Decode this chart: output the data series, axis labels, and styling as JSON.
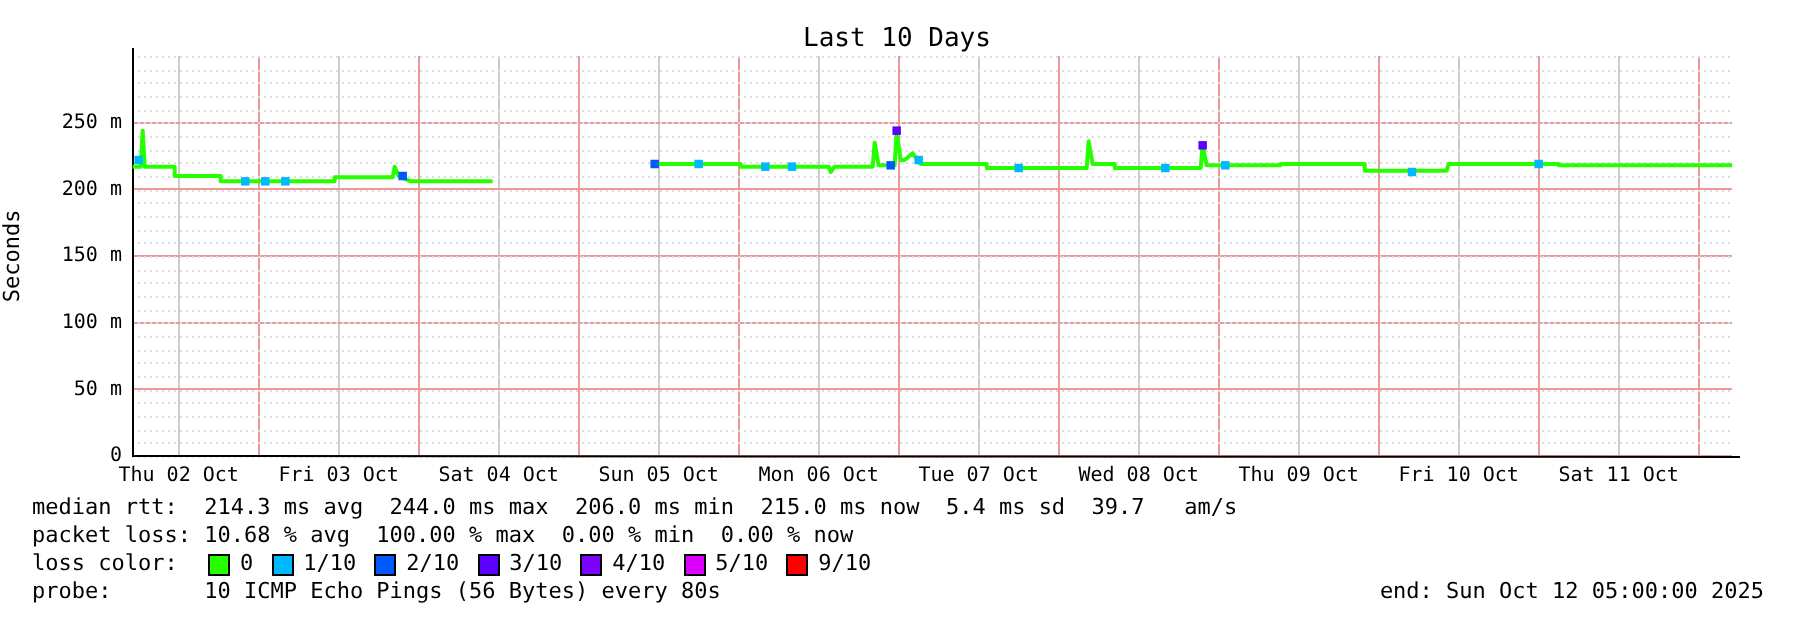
{
  "chart_data": {
    "type": "line",
    "title": "Last 10 Days",
    "ylabel": "Seconds",
    "legend_title": "loss color:",
    "legend": "bottom",
    "grid": true,
    "xlim": [
      "2025-10-02T05:00",
      "2025-10-12T05:00"
    ],
    "xticks": [
      {
        "value": "2025-10-02T12:00",
        "label": "Thu 02 Oct"
      },
      {
        "value": "2025-10-03",
        "label": null
      },
      {
        "value": "2025-10-03T12:00",
        "label": "Fri 03 Oct"
      },
      {
        "value": "2025-10-04",
        "label": null
      },
      {
        "value": "2025-10-04T12:00",
        "label": "Sat 04 Oct"
      },
      {
        "value": "2025-10-05",
        "label": null
      },
      {
        "value": "2025-10-05T12:00",
        "label": "Sun 05 Oct"
      },
      {
        "value": "2025-10-06",
        "label": null
      },
      {
        "value": "2025-10-06T12:00",
        "label": "Mon 06 Oct"
      },
      {
        "value": "2025-10-07",
        "label": null
      },
      {
        "value": "2025-10-07T12:00",
        "label": "Tue 07 Oct"
      },
      {
        "value": "2025-10-08",
        "label": null
      },
      {
        "value": "2025-10-08T12:00",
        "label": "Wed 08 Oct"
      },
      {
        "value": "2025-10-09",
        "label": null
      },
      {
        "value": "2025-10-09T12:00",
        "label": "Thu 09 Oct"
      },
      {
        "value": "2025-10-10",
        "label": null
      },
      {
        "value": "2025-10-10T12:00",
        "label": "Fri 10 Oct"
      },
      {
        "value": "2025-10-11",
        "label": null
      },
      {
        "value": "2025-10-11T12:00",
        "label": "Sat 11 Oct"
      },
      {
        "value": "2025-10-12",
        "label": null
      }
    ],
    "ylim": [
      0,
      300
    ],
    "yticks": [
      0,
      {
        "value": 50,
        "label": "50 m"
      },
      {
        "value": 100,
        "label": "100 m"
      },
      {
        "value": 150,
        "label": "150 m"
      },
      {
        "value": 200,
        "label": "200 m"
      },
      {
        "value": 250,
        "label": "250 m"
      }
    ],
    "series": [
      {
        "name": "0",
        "type": "line",
        "marker": "none",
        "color": "#26ff00",
        "x": [
          "2025-10-02T05:06",
          "2025-10-02T06:18",
          "2025-10-02T06:36",
          "2025-10-02T06:54",
          "2025-10-02T11:24",
          "2025-10-02T11:24",
          "2025-10-02T18:18",
          "2025-10-02T18:18",
          "2025-10-03T11:24",
          "2025-10-03T11:24",
          "2025-10-03T20:06",
          "2025-10-03T20:24",
          "2025-10-03T21:00",
          "2025-10-03T22:48",
          "2025-10-04T11:06",
          "2025-10-04T22:00",
          "2025-10-05T11:24",
          "2025-10-06T00:18",
          "2025-10-06T00:18",
          "2025-10-06T13:30",
          "2025-10-06T13:48",
          "2025-10-06T14:24",
          "2025-10-06T20:06",
          "2025-10-06T20:24",
          "2025-10-06T21:00",
          "2025-10-06T23:24",
          "2025-10-06T23:42",
          "2025-10-07T00:18",
          "2025-10-07T00:54",
          "2025-10-07T02:06",
          "2025-10-07T03:18",
          "2025-10-07T13:12",
          "2025-10-07T13:12",
          "2025-10-08T04:12",
          "2025-10-08T04:30",
          "2025-10-08T05:06",
          "2025-10-08T08:24",
          "2025-10-08T08:24",
          "2025-10-08T21:18",
          "2025-10-08T21:36",
          "2025-10-08T22:12",
          "2025-10-09T09:18",
          "2025-10-09T09:18",
          "2025-10-09T21:54",
          "2025-10-09T21:54",
          "2025-10-10T10:12",
          "2025-10-10T10:30",
          "2025-10-11T03:00",
          "2025-10-11T03:00",
          "2025-10-12T05:00"
        ],
        "values": [
          217,
          217,
          244,
          217,
          217,
          210,
          210,
          206,
          206,
          209,
          209,
          217,
          210,
          206,
          206,
          null,
          219,
          219,
          217,
          217,
          213,
          217,
          217,
          235,
          218,
          218,
          244,
          222,
          222,
          227,
          219,
          219,
          216,
          216,
          236,
          219,
          219,
          216,
          216,
          233,
          218,
          218,
          219,
          219,
          214,
          214,
          219,
          219,
          218,
          218
        ]
      },
      {
        "name": "1/10",
        "type": "scatter",
        "marker": "square",
        "color": "#00b8ff",
        "x": [
          "2025-10-02T06:00",
          "2025-10-02T22:00",
          "2025-10-03T01:00",
          "2025-10-03T04:00",
          "2025-10-05T18:00",
          "2025-10-06T04:00",
          "2025-10-06T08:00",
          "2025-10-07T03:00",
          "2025-10-07T18:00",
          "2025-10-08T16:00",
          "2025-10-09T01:00",
          "2025-10-10T05:00",
          "2025-10-11T00:00"
        ],
        "values": [
          222,
          206,
          206,
          206,
          219,
          217,
          217,
          222,
          216,
          216,
          218,
          213,
          219
        ]
      },
      {
        "name": "2/10",
        "type": "scatter",
        "marker": "square",
        "color": "#0059ff",
        "x": [
          "2025-10-03T21:36",
          "2025-10-05T11:24",
          "2025-10-06T22:48"
        ],
        "values": [
          210,
          219,
          218
        ]
      },
      {
        "name": "3/10",
        "type": "scatter",
        "marker": "square",
        "color": "#5e00ff",
        "x": [
          "2025-10-06T23:42",
          "2025-10-08T21:36"
        ],
        "values": [
          244,
          233
        ]
      },
      {
        "name": "4/10",
        "type": "scatter",
        "marker": "square",
        "color": "#7e00ff"
      },
      {
        "name": "5/10",
        "type": "scatter",
        "marker": "square",
        "color": "#dd00ff"
      },
      {
        "name": "9/10",
        "type": "scatter",
        "marker": "square",
        "color": "#ff0000"
      }
    ],
    "annotations": [
      "median rtt:  214.3 ms avg  244.0 ms max  206.0 ms min  215.0 ms now  5.4 ms sd  39.7   am/s",
      "packet loss: 10.68 % avg  100.00 % max  0.00 % min  0.00 % now",
      "probe:       10 ICMP Echo Pings (56 Bytes) every 80s",
      "end: Sun Oct 12 05:00:00 2025"
    ]
  }
}
